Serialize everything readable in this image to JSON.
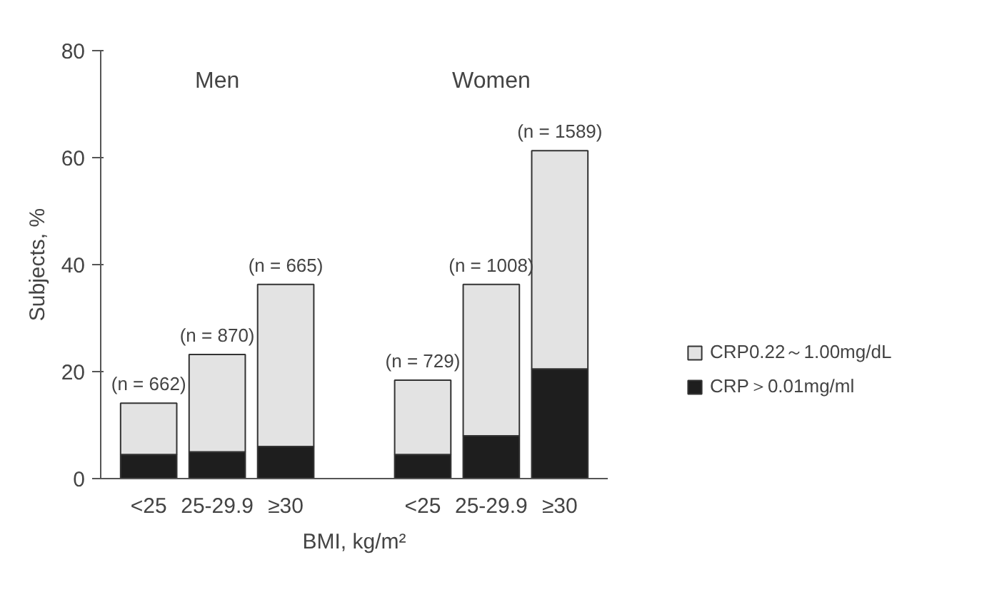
{
  "chart_data": {
    "type": "bar",
    "stacked": true,
    "xlabel": "BMI, kg/m²",
    "ylabel": "Subjects, %",
    "categories": [
      "<25",
      "25-29.9",
      "≥30",
      null,
      "<25",
      "25-29.9",
      "≥30"
    ],
    "series": [
      {
        "name": "CRP＞0.01mg/ml",
        "color": "#1e1e1e",
        "values": [
          4.5,
          5,
          6,
          null,
          4.5,
          8,
          20.5
        ]
      },
      {
        "name": "CRP0.22～1.00mg/dL",
        "color": "#e3e3e3",
        "values": [
          9.6,
          18.2,
          30.3,
          null,
          13.9,
          28.3,
          40.8
        ]
      }
    ],
    "annotations": [
      "Men",
      "Women",
      "(n = 662)",
      "(n = 870)",
      "(n = 665)",
      "(n = 729)",
      "(n = 1008)",
      "(n = 1589)"
    ],
    "ylim": [
      0,
      80
    ],
    "yticks": [
      0,
      20,
      40,
      60,
      80
    ],
    "grid": false,
    "legend": "bottom right"
  }
}
